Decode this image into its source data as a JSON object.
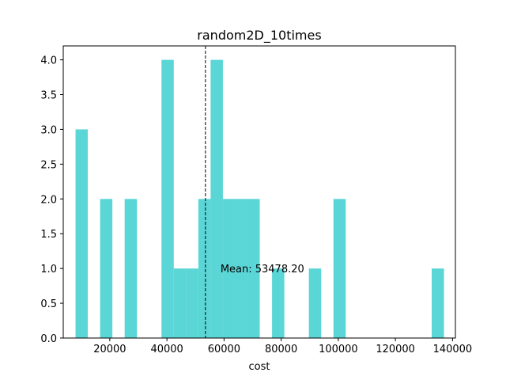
{
  "chart_data": {
    "type": "bar",
    "title": "random2D_10times",
    "xlabel": "cost",
    "ylabel": "",
    "xlim": [
      3700,
      141000
    ],
    "ylim": [
      0,
      4.2
    ],
    "bin_width": 4300,
    "bar_color": "#5bd6d6",
    "x_ticks": [
      {
        "value": 20000,
        "label": "20000"
      },
      {
        "value": 40000,
        "label": "40000"
      },
      {
        "value": 60000,
        "label": "60000"
      },
      {
        "value": 80000,
        "label": "80000"
      },
      {
        "value": 100000,
        "label": "100000"
      },
      {
        "value": 120000,
        "label": "120000"
      },
      {
        "value": 140000,
        "label": "140000"
      }
    ],
    "y_ticks": [
      {
        "value": 0.0,
        "label": "0.0"
      },
      {
        "value": 0.5,
        "label": "0.5"
      },
      {
        "value": 1.0,
        "label": "1.0"
      },
      {
        "value": 1.5,
        "label": "1.5"
      },
      {
        "value": 2.0,
        "label": "2.0"
      },
      {
        "value": 2.5,
        "label": "2.5"
      },
      {
        "value": 3.0,
        "label": "3.0"
      },
      {
        "value": 3.5,
        "label": "3.5"
      },
      {
        "value": 4.0,
        "label": "4.0"
      }
    ],
    "bins": [
      {
        "x0": 8000,
        "x1": 12300,
        "count": 3
      },
      {
        "x0": 16600,
        "x1": 20900,
        "count": 2
      },
      {
        "x0": 25200,
        "x1": 29500,
        "count": 2
      },
      {
        "x0": 38100,
        "x1": 42400,
        "count": 4
      },
      {
        "x0": 42400,
        "x1": 46700,
        "count": 1
      },
      {
        "x0": 46700,
        "x1": 51000,
        "count": 1
      },
      {
        "x0": 51000,
        "x1": 55300,
        "count": 2
      },
      {
        "x0": 55300,
        "x1": 59600,
        "count": 4
      },
      {
        "x0": 59600,
        "x1": 63900,
        "count": 2
      },
      {
        "x0": 63900,
        "x1": 68200,
        "count": 2
      },
      {
        "x0": 68200,
        "x1": 72500,
        "count": 2
      },
      {
        "x0": 76800,
        "x1": 81100,
        "count": 1
      },
      {
        "x0": 89700,
        "x1": 94000,
        "count": 1
      },
      {
        "x0": 98300,
        "x1": 102600,
        "count": 2
      },
      {
        "x0": 132700,
        "x1": 137000,
        "count": 1
      }
    ],
    "mean_line": {
      "value": 53478.2,
      "label": "Mean: 53478.20",
      "style": "dashed",
      "color": "#000000"
    }
  }
}
